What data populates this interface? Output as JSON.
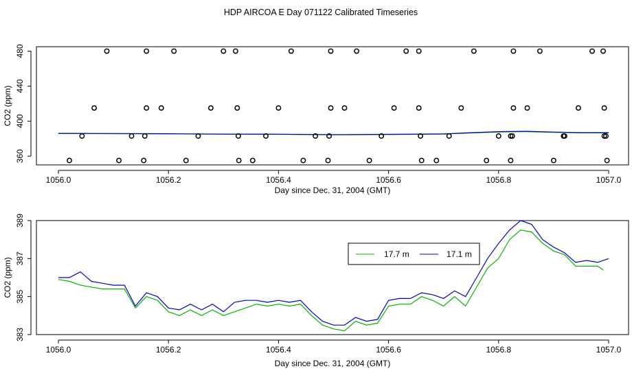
{
  "title": "HDP AIRCOA E  Day 071122  Calibrated Timeseries",
  "colors": {
    "series1": "#00b400",
    "series2": "#0000c8",
    "points": "#000000",
    "frame": "#000000",
    "background": "#ffffff"
  },
  "chart_data": [
    {
      "type": "scatter",
      "xlabel": "Day since Dec. 31, 2004 (GMT)",
      "ylabel": "CO2 (ppm)",
      "xlim": [
        1056.0,
        1057.0
      ],
      "ylim": [
        350,
        485
      ],
      "x_ticks": [
        1056.0,
        1056.2,
        1056.4,
        1056.6,
        1056.8,
        1057.0
      ],
      "x_tick_labels": [
        "1056.0",
        "1056.2",
        "1056.4",
        "1056.6",
        "1056.8",
        "1057.0"
      ],
      "y_ticks": [
        360,
        400,
        440,
        480
      ],
      "y_tick_labels": [
        "360",
        "400",
        "440",
        "480"
      ],
      "grid": false,
      "legend": false,
      "points": [
        {
          "x": 1056.088,
          "y": 480
        },
        {
          "x": 1056.16,
          "y": 480
        },
        {
          "x": 1056.21,
          "y": 480
        },
        {
          "x": 1056.3,
          "y": 480
        },
        {
          "x": 1056.322,
          "y": 480
        },
        {
          "x": 1056.423,
          "y": 480
        },
        {
          "x": 1056.495,
          "y": 480
        },
        {
          "x": 1056.542,
          "y": 480
        },
        {
          "x": 1056.632,
          "y": 480
        },
        {
          "x": 1056.655,
          "y": 480
        },
        {
          "x": 1056.755,
          "y": 480
        },
        {
          "x": 1056.827,
          "y": 480
        },
        {
          "x": 1056.875,
          "y": 480
        },
        {
          "x": 1056.97,
          "y": 480
        },
        {
          "x": 1056.99,
          "y": 480
        },
        {
          "x": 1056.065,
          "y": 415
        },
        {
          "x": 1056.16,
          "y": 415
        },
        {
          "x": 1056.187,
          "y": 415
        },
        {
          "x": 1056.277,
          "y": 415
        },
        {
          "x": 1056.325,
          "y": 415
        },
        {
          "x": 1056.4,
          "y": 415
        },
        {
          "x": 1056.495,
          "y": 415
        },
        {
          "x": 1056.52,
          "y": 415
        },
        {
          "x": 1056.61,
          "y": 415
        },
        {
          "x": 1056.655,
          "y": 415
        },
        {
          "x": 1056.732,
          "y": 415
        },
        {
          "x": 1056.827,
          "y": 415
        },
        {
          "x": 1056.852,
          "y": 415
        },
        {
          "x": 1056.945,
          "y": 415
        },
        {
          "x": 1056.992,
          "y": 415
        },
        {
          "x": 1056.043,
          "y": 383
        },
        {
          "x": 1056.133,
          "y": 383
        },
        {
          "x": 1056.157,
          "y": 383
        },
        {
          "x": 1056.254,
          "y": 383
        },
        {
          "x": 1056.327,
          "y": 383
        },
        {
          "x": 1056.377,
          "y": 383
        },
        {
          "x": 1056.467,
          "y": 383
        },
        {
          "x": 1056.492,
          "y": 383
        },
        {
          "x": 1056.587,
          "y": 383
        },
        {
          "x": 1056.658,
          "y": 383
        },
        {
          "x": 1056.71,
          "y": 383
        },
        {
          "x": 1056.8,
          "y": 383
        },
        {
          "x": 1056.822,
          "y": 383
        },
        {
          "x": 1056.825,
          "y": 383
        },
        {
          "x": 1056.918,
          "y": 383
        },
        {
          "x": 1056.92,
          "y": 383
        },
        {
          "x": 1056.992,
          "y": 383
        },
        {
          "x": 1056.995,
          "y": 383
        },
        {
          "x": 1056.02,
          "y": 355
        },
        {
          "x": 1056.11,
          "y": 355
        },
        {
          "x": 1056.155,
          "y": 355
        },
        {
          "x": 1056.232,
          "y": 355
        },
        {
          "x": 1056.328,
          "y": 355
        },
        {
          "x": 1056.353,
          "y": 355
        },
        {
          "x": 1056.445,
          "y": 355
        },
        {
          "x": 1056.49,
          "y": 355
        },
        {
          "x": 1056.565,
          "y": 355
        },
        {
          "x": 1056.66,
          "y": 355
        },
        {
          "x": 1056.687,
          "y": 355
        },
        {
          "x": 1056.778,
          "y": 355
        },
        {
          "x": 1056.822,
          "y": 355
        },
        {
          "x": 1056.9,
          "y": 355
        },
        {
          "x": 1056.997,
          "y": 355
        }
      ],
      "lines": [
        {
          "x": [
            1056.0,
            1056.1,
            1056.2,
            1056.3,
            1056.4,
            1056.5,
            1056.6,
            1056.7,
            1056.75,
            1056.8,
            1056.85,
            1056.9,
            1056.95,
            1057.0
          ],
          "values": [
            385.8,
            385.6,
            385.4,
            385.0,
            384.9,
            384.4,
            384.7,
            385.2,
            386.5,
            387.6,
            388.0,
            387.2,
            386.6,
            386.6
          ]
        },
        {
          "x": [
            1056.0,
            1056.1,
            1056.2,
            1056.3,
            1056.4,
            1056.5,
            1056.6,
            1056.7,
            1056.75,
            1056.8,
            1056.85,
            1056.9,
            1056.95,
            1057.0
          ],
          "values": [
            386.0,
            385.9,
            385.6,
            385.2,
            385.1,
            384.5,
            384.9,
            385.4,
            386.8,
            388.0,
            388.4,
            387.5,
            386.9,
            386.9
          ]
        }
      ]
    },
    {
      "type": "line",
      "xlabel": "Day since Dec. 31, 2004 (GMT)",
      "ylabel": "CO2 (ppm)",
      "xlim": [
        1056.0,
        1057.0
      ],
      "ylim": [
        383,
        389
      ],
      "x_ticks": [
        1056.0,
        1056.2,
        1056.4,
        1056.6,
        1056.8,
        1057.0
      ],
      "x_tick_labels": [
        "1056.0",
        "1056.2",
        "1056.4",
        "1056.6",
        "1056.8",
        "1057.0"
      ],
      "y_ticks": [
        383,
        385,
        387,
        389
      ],
      "y_tick_labels": [
        "383",
        "385",
        "387",
        "389"
      ],
      "grid": false,
      "legend": "top-right inside",
      "series": [
        {
          "name": "17.7 m",
          "x": [
            1056.0,
            1056.02,
            1056.04,
            1056.06,
            1056.08,
            1056.1,
            1056.12,
            1056.14,
            1056.16,
            1056.18,
            1056.2,
            1056.22,
            1056.24,
            1056.26,
            1056.28,
            1056.3,
            1056.32,
            1056.34,
            1056.36,
            1056.38,
            1056.4,
            1056.42,
            1056.44,
            1056.46,
            1056.48,
            1056.5,
            1056.52,
            1056.54,
            1056.56,
            1056.58,
            1056.6,
            1056.62,
            1056.64,
            1056.66,
            1056.68,
            1056.7,
            1056.72,
            1056.74,
            1056.76,
            1056.78,
            1056.8,
            1056.82,
            1056.84,
            1056.86,
            1056.88,
            1056.9,
            1056.92,
            1056.94,
            1056.96,
            1056.98,
            1056.99
          ],
          "values": [
            385.9,
            385.8,
            385.6,
            385.5,
            385.4,
            385.4,
            385.4,
            384.4,
            385.0,
            384.8,
            384.2,
            384.0,
            384.3,
            384.0,
            384.3,
            384.0,
            384.2,
            384.4,
            384.6,
            384.5,
            384.6,
            384.5,
            384.6,
            384.0,
            383.5,
            383.3,
            383.2,
            383.7,
            383.5,
            383.6,
            384.5,
            384.6,
            384.6,
            385.0,
            384.8,
            384.5,
            385.0,
            384.5,
            385.5,
            386.5,
            387.0,
            388.0,
            388.5,
            388.4,
            387.8,
            387.4,
            387.2,
            386.6,
            386.6,
            386.6,
            386.4
          ]
        },
        {
          "name": "17.1 m",
          "x": [
            1056.0,
            1056.02,
            1056.04,
            1056.06,
            1056.08,
            1056.1,
            1056.12,
            1056.14,
            1056.16,
            1056.18,
            1056.2,
            1056.22,
            1056.24,
            1056.26,
            1056.28,
            1056.3,
            1056.32,
            1056.34,
            1056.36,
            1056.38,
            1056.4,
            1056.42,
            1056.44,
            1056.46,
            1056.48,
            1056.5,
            1056.52,
            1056.54,
            1056.56,
            1056.58,
            1056.6,
            1056.62,
            1056.64,
            1056.66,
            1056.68,
            1056.7,
            1056.72,
            1056.74,
            1056.76,
            1056.78,
            1056.8,
            1056.82,
            1056.84,
            1056.86,
            1056.88,
            1056.9,
            1056.92,
            1056.94,
            1056.96,
            1056.98,
            1057.0
          ],
          "values": [
            386.0,
            386.0,
            386.3,
            385.8,
            385.7,
            385.6,
            385.6,
            384.5,
            385.2,
            385.0,
            384.4,
            384.3,
            384.6,
            384.3,
            384.6,
            384.2,
            384.7,
            384.8,
            384.8,
            384.7,
            384.8,
            384.7,
            384.8,
            384.2,
            383.7,
            383.5,
            383.5,
            383.9,
            383.7,
            383.8,
            384.8,
            384.9,
            384.9,
            385.2,
            385.1,
            384.9,
            385.3,
            385.0,
            386.0,
            387.0,
            387.8,
            388.5,
            389.0,
            388.8,
            388.0,
            387.6,
            387.3,
            386.8,
            386.9,
            386.8,
            387.0
          ]
        }
      ]
    }
  ]
}
